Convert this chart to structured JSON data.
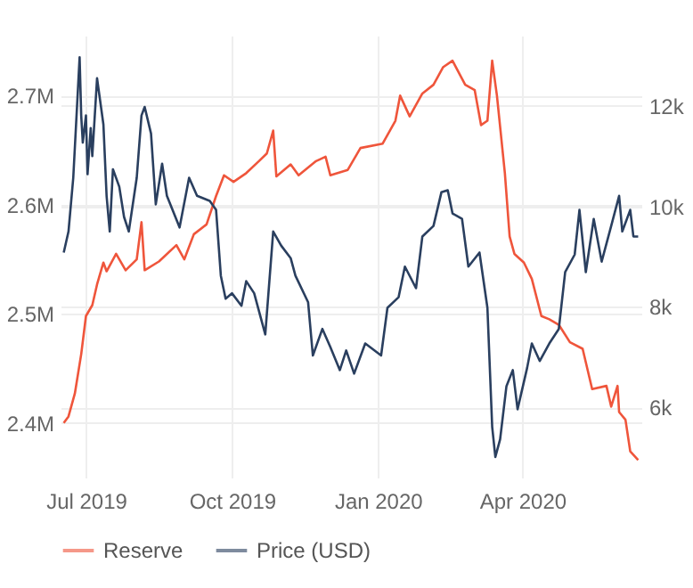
{
  "chart_data": {
    "type": "line",
    "grid": true,
    "legend": "bottom",
    "xlim": [
      "2019-06-15",
      "2020-06-15"
    ],
    "xticks": [
      {
        "value": "2019-07-01",
        "label": "Jul 2019"
      },
      {
        "value": "2019-10-01",
        "label": "Oct 2019"
      },
      {
        "value": "2020-01-01",
        "label": "Jan 2020"
      },
      {
        "value": "2020-04-01",
        "label": "Apr 2020"
      }
    ],
    "ylim": [
      2350000,
      2755000
    ],
    "yticks": [
      {
        "value": 2400000,
        "label": "2.4M"
      },
      {
        "value": 2500000,
        "label": "2.5M"
      },
      {
        "value": 2600000,
        "label": "2.6M"
      },
      {
        "value": 2700000,
        "label": "2.7M"
      }
    ],
    "y2lim": [
      4600,
      13400
    ],
    "y2ticks": [
      {
        "value": 6000,
        "label": "6k"
      },
      {
        "value": 8000,
        "label": "8k"
      },
      {
        "value": 10000,
        "label": "10k"
      },
      {
        "value": 12000,
        "label": "12k"
      }
    ],
    "series": [
      {
        "name": "Reserve",
        "color": "#ef553b",
        "x": [
          "2019-06-17",
          "2019-06-20",
          "2019-06-24",
          "2019-06-28",
          "2019-07-01",
          "2019-07-05",
          "2019-07-08",
          "2019-07-12",
          "2019-07-14",
          "2019-07-20",
          "2019-07-26",
          "2019-08-02",
          "2019-08-05",
          "2019-08-07",
          "2019-08-16",
          "2019-08-27",
          "2019-09-01",
          "2019-09-07",
          "2019-09-15",
          "2019-09-21",
          "2019-09-26",
          "2019-10-02",
          "2019-10-10",
          "2019-10-18",
          "2019-10-23",
          "2019-10-27",
          "2019-10-29",
          "2019-11-07",
          "2019-11-12",
          "2019-11-23",
          "2019-11-29",
          "2019-12-02",
          "2019-12-13",
          "2019-12-21",
          "2020-01-04",
          "2020-01-12",
          "2020-01-15",
          "2020-01-21",
          "2020-01-29",
          "2020-02-05",
          "2020-02-11",
          "2020-02-17",
          "2020-02-25",
          "2020-03-02",
          "2020-03-06",
          "2020-03-10",
          "2020-03-13",
          "2020-03-16",
          "2020-03-21",
          "2020-03-24",
          "2020-03-27",
          "2020-04-02",
          "2020-04-07",
          "2020-04-13",
          "2020-04-18",
          "2020-04-24",
          "2020-05-01",
          "2020-05-09",
          "2020-05-15",
          "2020-05-24",
          "2020-05-27",
          "2020-05-31",
          "2020-06-01",
          "2020-06-05",
          "2020-06-08",
          "2020-06-13"
        ],
        "values": [
          2400000,
          2406000,
          2427000,
          2463000,
          2498000,
          2508000,
          2527000,
          2547000,
          2539000,
          2555000,
          2540000,
          2550000,
          2584000,
          2540000,
          2548000,
          2563000,
          2550000,
          2573000,
          2582000,
          2608000,
          2627000,
          2621000,
          2629000,
          2640000,
          2647000,
          2668000,
          2626000,
          2637000,
          2627000,
          2640000,
          2644000,
          2627000,
          2632000,
          2652000,
          2656000,
          2677000,
          2700000,
          2681000,
          2702000,
          2710000,
          2726000,
          2732000,
          2710000,
          2705000,
          2673000,
          2677000,
          2732000,
          2700000,
          2629000,
          2571000,
          2555000,
          2547000,
          2532000,
          2498000,
          2495000,
          2490000,
          2474000,
          2468000,
          2431000,
          2434000,
          2415000,
          2434000,
          2410000,
          2403000,
          2374000,
          2366000
        ]
      },
      {
        "name": "Price (USD)",
        "color": "#2a3f5f",
        "axis": "y2",
        "x": [
          "2019-06-17",
          "2019-06-20",
          "2019-06-23",
          "2019-06-27",
          "2019-06-28",
          "2019-06-29",
          "2019-07-01",
          "2019-07-02",
          "2019-07-04",
          "2019-07-05",
          "2019-07-08",
          "2019-07-12",
          "2019-07-14",
          "2019-07-16",
          "2019-07-18",
          "2019-07-22",
          "2019-07-25",
          "2019-07-28",
          "2019-08-02",
          "2019-08-05",
          "2019-08-07",
          "2019-08-11",
          "2019-08-14",
          "2019-08-18",
          "2019-08-21",
          "2019-08-29",
          "2019-09-04",
          "2019-09-09",
          "2019-09-17",
          "2019-09-21",
          "2019-09-24",
          "2019-09-27",
          "2019-10-01",
          "2019-10-07",
          "2019-10-10",
          "2019-10-15",
          "2019-10-22",
          "2019-10-27",
          "2019-11-01",
          "2019-11-07",
          "2019-11-10",
          "2019-11-18",
          "2019-11-21",
          "2019-11-27",
          "2019-12-02",
          "2019-12-08",
          "2019-12-12",
          "2019-12-17",
          "2019-12-24",
          "2020-01-03",
          "2020-01-07",
          "2020-01-14",
          "2020-01-18",
          "2020-01-25",
          "2020-01-29",
          "2020-02-05",
          "2020-02-10",
          "2020-02-14",
          "2020-02-17",
          "2020-02-23",
          "2020-02-27",
          "2020-03-05",
          "2020-03-10",
          "2020-03-13",
          "2020-03-15",
          "2020-03-18",
          "2020-03-22",
          "2020-03-26",
          "2020-03-29",
          "2020-04-04",
          "2020-04-07",
          "2020-04-12",
          "2020-04-18",
          "2020-04-24",
          "2020-04-28",
          "2020-05-04",
          "2020-05-07",
          "2020-05-11",
          "2020-05-16",
          "2020-05-21",
          "2020-05-27",
          "2020-06-01",
          "2020-06-03",
          "2020-06-08",
          "2020-06-10",
          "2020-06-13"
        ],
        "values": [
          9080,
          9500,
          10570,
          12970,
          11810,
          11270,
          11810,
          10640,
          11560,
          11000,
          12550,
          11630,
          10210,
          9500,
          10740,
          10390,
          9790,
          9500,
          10570,
          11810,
          11980,
          11450,
          10040,
          10850,
          10210,
          9580,
          10570,
          10210,
          10110,
          9930,
          8620,
          8160,
          8270,
          8020,
          8510,
          8270,
          7450,
          9500,
          9220,
          8970,
          8620,
          8090,
          7030,
          7560,
          7200,
          6740,
          7130,
          6670,
          7270,
          7030,
          7980,
          8190,
          8800,
          8370,
          9400,
          9610,
          10280,
          10320,
          9860,
          9750,
          8800,
          9080,
          7980,
          5610,
          5010,
          5360,
          6420,
          6740,
          5960,
          6780,
          7270,
          6920,
          7270,
          7560,
          8690,
          9040,
          9930,
          8690,
          9750,
          8900,
          9610,
          10210,
          9500,
          9930,
          9400,
          9400
        ]
      }
    ]
  }
}
